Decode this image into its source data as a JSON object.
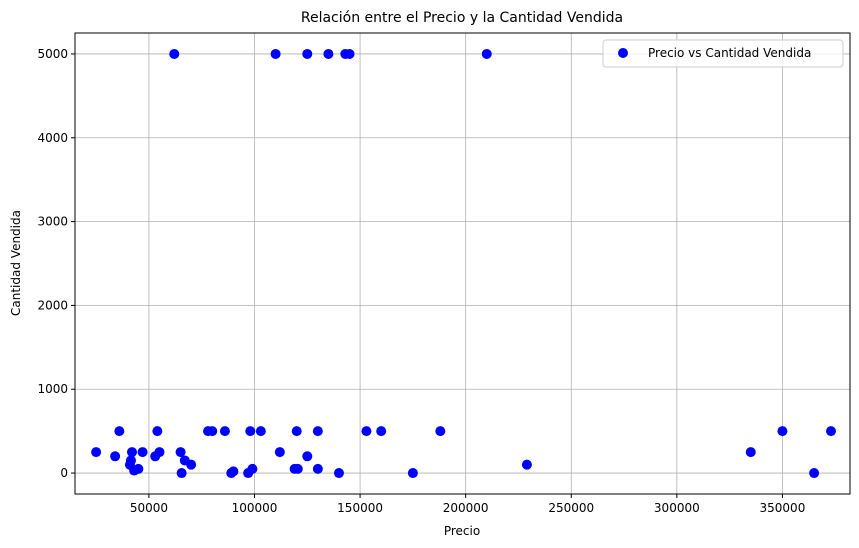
{
  "chart_data": {
    "type": "scatter",
    "title": "Relación entre el Precio y la Cantidad Vendida",
    "xlabel": "Precio",
    "ylabel": "Cantidad Vendida",
    "xlim": [
      15000,
      382000
    ],
    "ylim": [
      -250,
      5250
    ],
    "xticks": [
      50000,
      100000,
      150000,
      200000,
      250000,
      300000,
      350000
    ],
    "xtick_labels": [
      "50000",
      "100000",
      "150000",
      "200000",
      "250000",
      "300000",
      "350000"
    ],
    "yticks": [
      0,
      1000,
      2000,
      3000,
      4000,
      5000
    ],
    "ytick_labels": [
      "0",
      "1000",
      "2000",
      "3000",
      "4000",
      "5000"
    ],
    "grid": true,
    "legend_position": "top-right",
    "series": [
      {
        "name": "Precio vs Cantidad Vendida",
        "color": "#0000ff",
        "points": [
          [
            62000,
            5000
          ],
          [
            110000,
            5000
          ],
          [
            125000,
            5000
          ],
          [
            135000,
            5000
          ],
          [
            143000,
            5000
          ],
          [
            145000,
            5000
          ],
          [
            210000,
            5000
          ],
          [
            25000,
            250
          ],
          [
            34000,
            200
          ],
          [
            36000,
            500
          ],
          [
            41000,
            100
          ],
          [
            41500,
            150
          ],
          [
            42000,
            250
          ],
          [
            43000,
            30
          ],
          [
            45000,
            50
          ],
          [
            47000,
            250
          ],
          [
            53000,
            200
          ],
          [
            54000,
            500
          ],
          [
            55000,
            250
          ],
          [
            65000,
            250
          ],
          [
            65500,
            0
          ],
          [
            67000,
            150
          ],
          [
            70000,
            100
          ],
          [
            78000,
            500
          ],
          [
            80000,
            500
          ],
          [
            86000,
            500
          ],
          [
            89000,
            0
          ],
          [
            90000,
            20
          ],
          [
            97000,
            0
          ],
          [
            98000,
            500
          ],
          [
            99000,
            50
          ],
          [
            103000,
            500
          ],
          [
            112000,
            250
          ],
          [
            119000,
            50
          ],
          [
            120000,
            500
          ],
          [
            120500,
            50
          ],
          [
            125000,
            200
          ],
          [
            130000,
            500
          ],
          [
            130000,
            50
          ],
          [
            140000,
            0
          ],
          [
            153000,
            500
          ],
          [
            160000,
            500
          ],
          [
            175000,
            0
          ],
          [
            188000,
            500
          ],
          [
            229000,
            100
          ],
          [
            335000,
            250
          ],
          [
            350000,
            500
          ],
          [
            365000,
            0
          ],
          [
            373000,
            500
          ]
        ]
      }
    ]
  }
}
